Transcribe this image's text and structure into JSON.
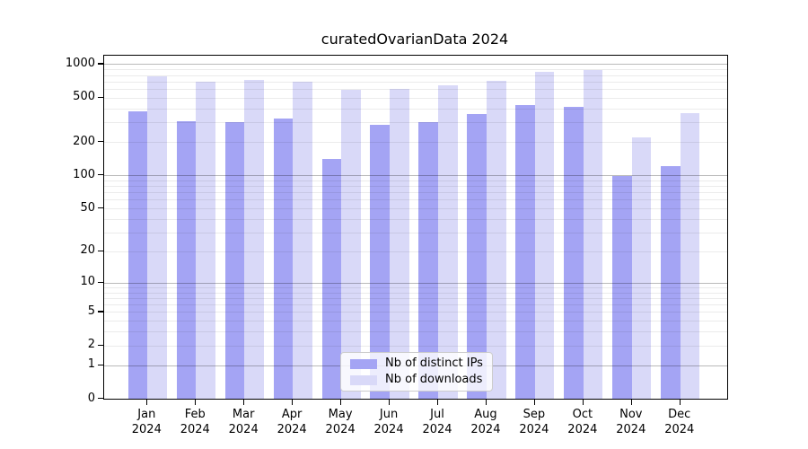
{
  "figure": {
    "background": "#ffffff"
  },
  "chart_data": {
    "type": "bar",
    "title": "curatedOvarianData 2024",
    "scale": "log1p",
    "grid": "both",
    "legend_position": "lower-center",
    "categories": [
      "Jan",
      "Feb",
      "Mar",
      "Apr",
      "May",
      "Jun",
      "Jul",
      "Aug",
      "Sep",
      "Oct",
      "Nov",
      "Dec"
    ],
    "year_label": "2024",
    "series": [
      {
        "name": "Nb of distinct IPs",
        "color": "#a4a4f4",
        "values": [
          375,
          310,
          300,
          328,
          140,
          283,
          303,
          360,
          427,
          414,
          98,
          121
        ]
      },
      {
        "name": "Nb of downloads",
        "color": "#d9d9f8",
        "values": [
          777,
          690,
          725,
          702,
          584,
          600,
          643,
          711,
          862,
          883,
          221,
          365
        ]
      }
    ],
    "y_ticks": [
      0,
      1,
      2,
      5,
      10,
      20,
      50,
      100,
      200,
      500,
      1000
    ],
    "ylim": [
      0,
      1200
    ],
    "xlabel": "",
    "ylabel": ""
  }
}
